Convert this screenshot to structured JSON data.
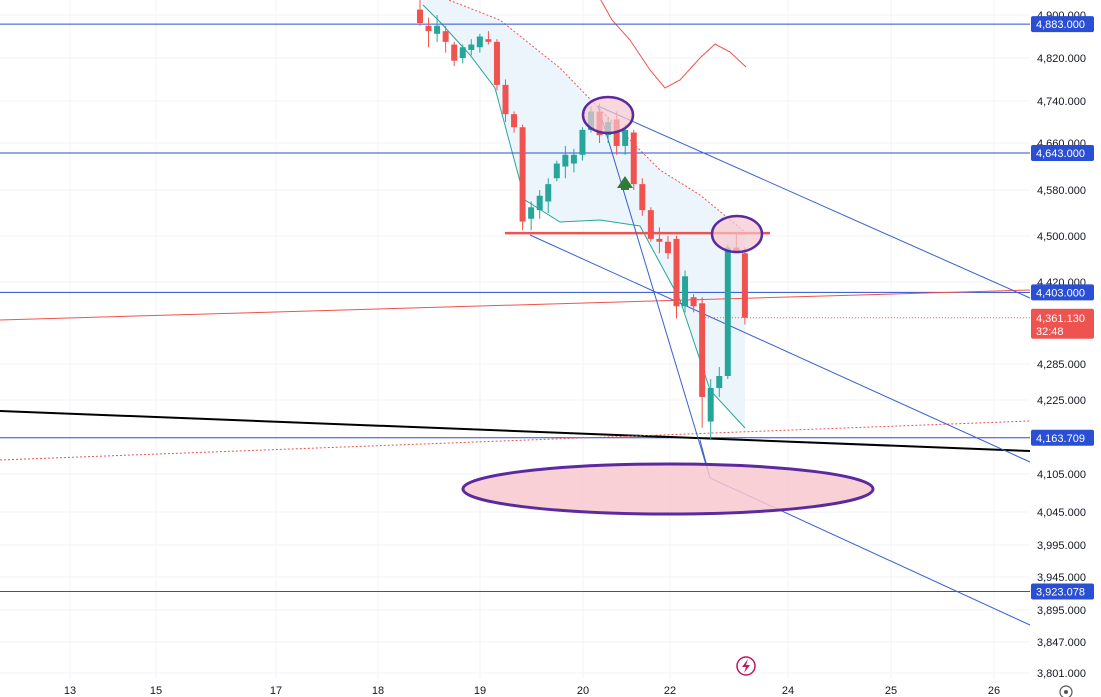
{
  "colors": {
    "up": "#26a69a",
    "down": "#ef5350",
    "hline": "#2a4fd4",
    "trend": "#3a5fd0",
    "ellipse_stroke": "#5b2aa0",
    "ellipse_fill": "#f7c8cf",
    "band_fill": "#eaf3fb",
    "upper_band": "#ef5350",
    "lower_band": "#26a69a",
    "price_badge": "#ef5350"
  },
  "chart_data": {
    "type": "candlestick",
    "x_ticks": [
      "13",
      "15",
      "17",
      "18",
      "19",
      "20",
      "22",
      "24",
      "25",
      "26"
    ],
    "y_ticks": [
      "4,900.000",
      "4,820.000",
      "4,740.000",
      "4,660.000",
      "4,580.000",
      "4,500.000",
      "4,420.000",
      "4,285.000",
      "4,225.000",
      "4,105.000",
      "4,045.000",
      "3,995.000",
      "3,945.000",
      "3,895.000",
      "3,847.000",
      "3,801.000"
    ],
    "horizontal_levels": [
      {
        "label": "4,883.000",
        "value": 4883
      },
      {
        "label": "4,643.000",
        "value": 4643
      },
      {
        "label": "4,403.000",
        "value": 4403
      },
      {
        "label": "4,163.709",
        "value": 4163.709
      },
      {
        "label": "3,923.078",
        "value": 3923.078
      }
    ],
    "last_price": {
      "label": "4,361.130",
      "value": 4361.13,
      "countdown": "32:48"
    },
    "support_level": 4505,
    "candles": [
      {
        "i": 0,
        "o": 4910,
        "h": 4935,
        "l": 4880,
        "c": 4885
      },
      {
        "i": 1,
        "o": 4880,
        "h": 4895,
        "l": 4840,
        "c": 4870
      },
      {
        "i": 2,
        "o": 4865,
        "h": 4900,
        "l": 4850,
        "c": 4880
      },
      {
        "i": 3,
        "o": 4870,
        "h": 4880,
        "l": 4830,
        "c": 4850
      },
      {
        "i": 4,
        "o": 4845,
        "h": 4850,
        "l": 4805,
        "c": 4815
      },
      {
        "i": 5,
        "o": 4820,
        "h": 4845,
        "l": 4810,
        "c": 4840
      },
      {
        "i": 6,
        "o": 4835,
        "h": 4855,
        "l": 4825,
        "c": 4845
      },
      {
        "i": 7,
        "o": 4840,
        "h": 4865,
        "l": 4830,
        "c": 4860
      },
      {
        "i": 8,
        "o": 4855,
        "h": 4870,
        "l": 4845,
        "c": 4850
      },
      {
        "i": 9,
        "o": 4850,
        "h": 4855,
        "l": 4760,
        "c": 4770
      },
      {
        "i": 10,
        "o": 4770,
        "h": 4780,
        "l": 4700,
        "c": 4715
      },
      {
        "i": 11,
        "o": 4715,
        "h": 4720,
        "l": 4680,
        "c": 4690
      },
      {
        "i": 12,
        "o": 4690,
        "h": 4695,
        "l": 4510,
        "c": 4525
      },
      {
        "i": 13,
        "o": 4530,
        "h": 4560,
        "l": 4510,
        "c": 4550
      },
      {
        "i": 14,
        "o": 4545,
        "h": 4580,
        "l": 4530,
        "c": 4570
      },
      {
        "i": 15,
        "o": 4560,
        "h": 4600,
        "l": 4540,
        "c": 4590
      },
      {
        "i": 16,
        "o": 4600,
        "h": 4630,
        "l": 4595,
        "c": 4625
      },
      {
        "i": 17,
        "o": 4620,
        "h": 4655,
        "l": 4600,
        "c": 4640
      },
      {
        "i": 18,
        "o": 4625,
        "h": 4650,
        "l": 4610,
        "c": 4640
      },
      {
        "i": 19,
        "o": 4640,
        "h": 4690,
        "l": 4630,
        "c": 4685
      },
      {
        "i": 20,
        "o": 4685,
        "h": 4730,
        "l": 4680,
        "c": 4720
      },
      {
        "i": 21,
        "o": 4720,
        "h": 4735,
        "l": 4660,
        "c": 4675
      },
      {
        "i": 22,
        "o": 4675,
        "h": 4710,
        "l": 4660,
        "c": 4700
      },
      {
        "i": 23,
        "o": 4705,
        "h": 4720,
        "l": 4640,
        "c": 4655
      },
      {
        "i": 24,
        "o": 4655,
        "h": 4695,
        "l": 4640,
        "c": 4685
      },
      {
        "i": 25,
        "o": 4680,
        "h": 4685,
        "l": 4580,
        "c": 4590
      },
      {
        "i": 26,
        "o": 4590,
        "h": 4600,
        "l": 4535,
        "c": 4545
      },
      {
        "i": 27,
        "o": 4545,
        "h": 4550,
        "l": 4490,
        "c": 4495
      },
      {
        "i": 28,
        "o": 4495,
        "h": 4515,
        "l": 4470,
        "c": 4490
      },
      {
        "i": 29,
        "o": 4490,
        "h": 4500,
        "l": 4460,
        "c": 4470
      },
      {
        "i": 30,
        "o": 4495,
        "h": 4500,
        "l": 4360,
        "c": 4380
      },
      {
        "i": 31,
        "o": 4380,
        "h": 4440,
        "l": 4370,
        "c": 4430
      },
      {
        "i": 32,
        "o": 4395,
        "h": 4400,
        "l": 4370,
        "c": 4380
      },
      {
        "i": 33,
        "o": 4385,
        "h": 4395,
        "l": 4180,
        "c": 4230
      },
      {
        "i": 34,
        "o": 4190,
        "h": 4260,
        "l": 4160,
        "c": 4245
      },
      {
        "i": 35,
        "o": 4245,
        "h": 4280,
        "l": 4230,
        "c": 4265
      },
      {
        "i": 36,
        "o": 4265,
        "h": 4485,
        "l": 4260,
        "c": 4480
      },
      {
        "i": 37,
        "o": 4480,
        "h": 4505,
        "l": 4470,
        "c": 4470
      },
      {
        "i": 38,
        "o": 4470,
        "h": 4480,
        "l": 4350,
        "c": 4361.13
      }
    ]
  }
}
